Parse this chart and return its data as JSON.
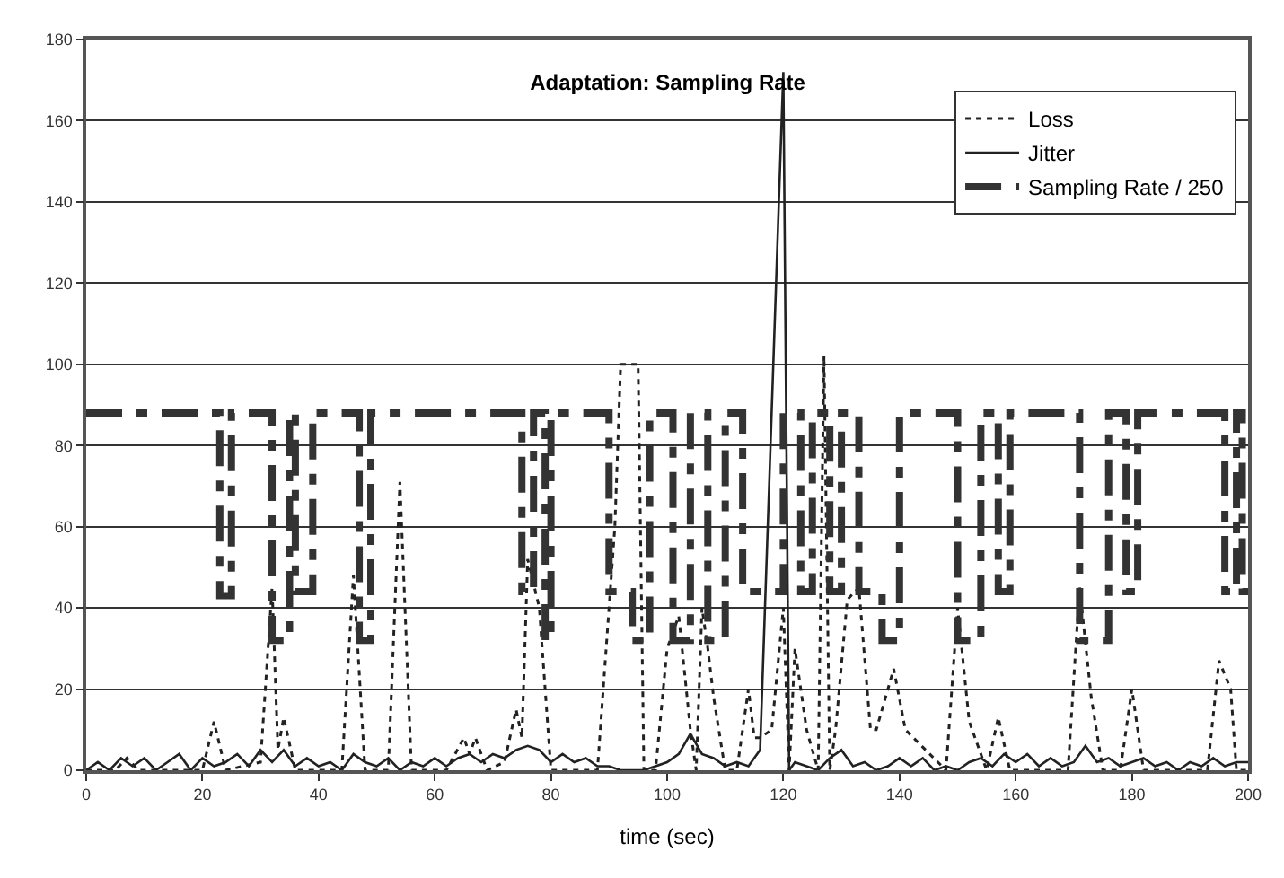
{
  "chart_data": {
    "type": "line",
    "title": "Adaptation: Sampling Rate",
    "xlabel": "time (sec)",
    "xlim": [
      0,
      200
    ],
    "xticks": [
      0,
      20,
      40,
      60,
      80,
      100,
      120,
      140,
      160,
      180,
      200
    ],
    "ylim": [
      0,
      180
    ],
    "yticks": [
      0,
      20,
      40,
      60,
      80,
      100,
      120,
      140,
      160,
      180
    ],
    "grid": "y",
    "legend": "top right",
    "marker": "none",
    "series": [
      {
        "name": "Loss",
        "color": "#222222",
        "line_style": "dotted",
        "x": [
          0,
          5,
          7,
          9,
          20,
          22,
          24,
          30,
          32,
          33,
          34,
          36,
          44,
          46,
          48,
          52,
          54,
          56,
          62,
          65,
          66,
          67,
          69,
          72,
          74,
          75,
          76,
          78,
          80,
          88,
          91,
          92,
          95,
          96,
          98,
          100,
          102,
          104,
          105,
          106,
          107,
          108,
          110,
          112,
          114,
          115,
          116,
          118,
          120,
          121,
          122,
          124,
          126,
          127,
          128,
          129,
          131,
          133,
          135,
          136,
          139,
          141,
          148,
          150,
          152,
          155,
          157,
          159,
          169,
          171,
          173,
          175,
          178,
          180,
          182,
          193,
          195,
          197,
          198,
          200
        ],
        "values": [
          0,
          0,
          3,
          0,
          0,
          12,
          0,
          2,
          45,
          5,
          13,
          0,
          0,
          48,
          0,
          0,
          71,
          0,
          0,
          8,
          4,
          8,
          0,
          2,
          15,
          8,
          52,
          40,
          0,
          0,
          60,
          100,
          100,
          0,
          0,
          30,
          38,
          10,
          0,
          40,
          30,
          18,
          0,
          0,
          20,
          8,
          8,
          10,
          40,
          0,
          30,
          10,
          0,
          102,
          0,
          10,
          42,
          45,
          10,
          10,
          25,
          10,
          0,
          40,
          12,
          0,
          13,
          0,
          0,
          45,
          18,
          0,
          0,
          20,
          0,
          0,
          27,
          20,
          0,
          0
        ]
      },
      {
        "name": "Jitter",
        "color": "#222222",
        "line_style": "solid",
        "x": [
          0,
          2,
          4,
          6,
          8,
          10,
          12,
          14,
          16,
          18,
          20,
          22,
          24,
          26,
          28,
          30,
          32,
          34,
          36,
          38,
          40,
          42,
          44,
          46,
          48,
          50,
          52,
          54,
          56,
          58,
          60,
          62,
          64,
          66,
          68,
          70,
          72,
          74,
          76,
          78,
          80,
          82,
          84,
          86,
          88,
          90,
          92,
          94,
          96,
          98,
          100,
          102,
          104,
          106,
          108,
          110,
          112,
          114,
          116,
          120,
          121,
          122,
          124,
          126,
          128,
          130,
          132,
          134,
          136,
          138,
          140,
          142,
          144,
          146,
          148,
          150,
          152,
          154,
          156,
          158,
          160,
          162,
          164,
          166,
          168,
          170,
          172,
          174,
          176,
          178,
          180,
          182,
          184,
          186,
          188,
          190,
          192,
          194,
          196,
          198,
          200
        ],
        "values": [
          0,
          2,
          0,
          3,
          1,
          3,
          0,
          2,
          4,
          0,
          3,
          1,
          2,
          4,
          1,
          5,
          2,
          5,
          1,
          3,
          1,
          2,
          0,
          4,
          2,
          1,
          3,
          0,
          2,
          1,
          3,
          1,
          3,
          4,
          2,
          4,
          3,
          5,
          6,
          5,
          2,
          4,
          2,
          3,
          1,
          1,
          0,
          0,
          0,
          1,
          2,
          4,
          9,
          4,
          3,
          1,
          2,
          1,
          5,
          172,
          0,
          2,
          1,
          0,
          3,
          5,
          1,
          2,
          0,
          1,
          3,
          1,
          3,
          0,
          1,
          0,
          2,
          3,
          1,
          4,
          2,
          4,
          1,
          3,
          1,
          2,
          6,
          2,
          3,
          1,
          2,
          3,
          1,
          2,
          0,
          2,
          1,
          3,
          1,
          2,
          2
        ]
      },
      {
        "name": "Sampling Rate / 250",
        "color": "#333333",
        "line_style": "dashed",
        "x": [
          0,
          23,
          23,
          25,
          25,
          32,
          32,
          35,
          35,
          36,
          36,
          39,
          39,
          47,
          47,
          49,
          49,
          75,
          75,
          77,
          77,
          79,
          79,
          80,
          80,
          90,
          90,
          94,
          94,
          97,
          97,
          101,
          101,
          104,
          104,
          107,
          107,
          110,
          110,
          113,
          113,
          120,
          120,
          123,
          123,
          125,
          125,
          128,
          128,
          130,
          130,
          133,
          133,
          137,
          137,
          140,
          140,
          150,
          150,
          154,
          154,
          157,
          157,
          159,
          159,
          171,
          171,
          176,
          176,
          179,
          179,
          181,
          181,
          196,
          196,
          198,
          198,
          199,
          199,
          200
        ],
        "values": [
          88,
          88,
          43,
          43,
          88,
          88,
          32,
          32,
          88,
          88,
          44,
          44,
          88,
          88,
          32,
          32,
          88,
          88,
          44,
          44,
          88,
          88,
          32,
          32,
          88,
          88,
          44,
          44,
          32,
          32,
          88,
          88,
          32,
          32,
          88,
          88,
          32,
          32,
          88,
          88,
          44,
          44,
          88,
          88,
          44,
          44,
          88,
          88,
          44,
          44,
          88,
          88,
          44,
          44,
          32,
          32,
          88,
          88,
          32,
          32,
          88,
          88,
          44,
          44,
          88,
          88,
          32,
          32,
          88,
          88,
          44,
          44,
          88,
          88,
          44,
          44,
          88,
          88,
          44,
          44
        ]
      }
    ]
  }
}
